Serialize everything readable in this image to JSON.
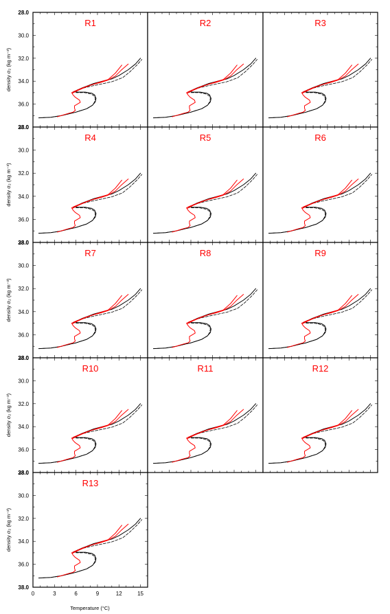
{
  "figure": {
    "ylabel": "density σ₂ (kg m⁻³)",
    "xlabel": "Temperature (°C)"
  },
  "colors": {
    "observed": "#000000",
    "model": "#ff0000",
    "title": "#ff0000"
  },
  "chart_data": {
    "type": "line",
    "xlim": [
      0,
      16
    ],
    "ylim": [
      28,
      38
    ],
    "y_reversed": true,
    "xticks": [
      0,
      3,
      6,
      9,
      12,
      15
    ],
    "yticks": [
      28.0,
      30.0,
      32.0,
      34.0,
      36.0,
      38.0
    ],
    "ytick_labels": [
      "28.0",
      "30.0",
      "32.0",
      "34.0",
      "36.0",
      "38.0"
    ],
    "panels": [
      {
        "title": "R1"
      },
      {
        "title": "R2"
      },
      {
        "title": "R3"
      },
      {
        "title": "R4"
      },
      {
        "title": "R5"
      },
      {
        "title": "R6"
      },
      {
        "title": "R7"
      },
      {
        "title": "R8"
      },
      {
        "title": "R9"
      },
      {
        "title": "R10"
      },
      {
        "title": "R11"
      },
      {
        "title": "R12"
      },
      {
        "title": "R13"
      }
    ],
    "series": [
      {
        "style": "solid",
        "color": "#000000",
        "x": [
          0.8,
          2.5,
          4.0,
          5.3,
          6.0,
          6.5,
          7.5,
          8.3,
          8.7,
          8.8,
          8.6,
          8.2,
          7.3,
          6.2,
          5.8,
          6.8,
          8.5,
          10.0,
          11.0,
          12.0,
          13.3,
          14.3,
          15.0
        ],
        "y": [
          37.2,
          37.15,
          37.0,
          36.8,
          36.7,
          36.6,
          36.4,
          36.1,
          35.8,
          35.5,
          35.2,
          35.05,
          34.95,
          34.95,
          34.9,
          34.6,
          34.2,
          33.95,
          33.8,
          33.5,
          33.0,
          32.5,
          32.0
        ]
      },
      {
        "style": "dashed",
        "color": "#000000",
        "x": [
          0.8,
          2.5,
          4.0,
          5.3,
          6.0,
          6.5,
          7.5,
          8.3,
          8.6,
          8.7,
          8.5,
          8.0,
          7.2,
          6.1,
          5.6,
          6.4,
          8.0,
          9.5,
          11.0,
          12.5,
          13.5,
          14.5,
          15.2
        ],
        "y": [
          37.2,
          37.15,
          37.0,
          36.8,
          36.7,
          36.6,
          36.4,
          36.1,
          35.8,
          35.5,
          35.25,
          35.1,
          35.0,
          35.0,
          34.95,
          34.7,
          34.45,
          34.25,
          34.05,
          33.7,
          33.2,
          32.6,
          32.1
        ]
      },
      {
        "style": "solid",
        "color": "#ff0000",
        "x": [
          3.4,
          4.2,
          5.0,
          5.6,
          5.9,
          5.8,
          5.8,
          6.2,
          6.6,
          6.5,
          5.9,
          5.6,
          5.4,
          5.7,
          6.5,
          7.5,
          8.5,
          9.5,
          10.5,
          11.5,
          12.4
        ],
        "y": [
          37.1,
          36.95,
          36.8,
          36.7,
          36.55,
          36.35,
          36.15,
          36.0,
          35.85,
          35.65,
          35.4,
          35.2,
          35.0,
          34.9,
          34.7,
          34.45,
          34.25,
          34.05,
          33.85,
          33.3,
          32.6
        ]
      },
      {
        "style": "solid",
        "color": "#ff0000",
        "x": [
          5.5,
          6.3,
          7.2,
          8.3,
          9.5,
          10.5,
          11.5,
          12.3,
          13.3
        ],
        "y": [
          35.05,
          34.8,
          34.55,
          34.3,
          34.1,
          33.9,
          33.55,
          33.05,
          32.5
        ]
      }
    ]
  }
}
